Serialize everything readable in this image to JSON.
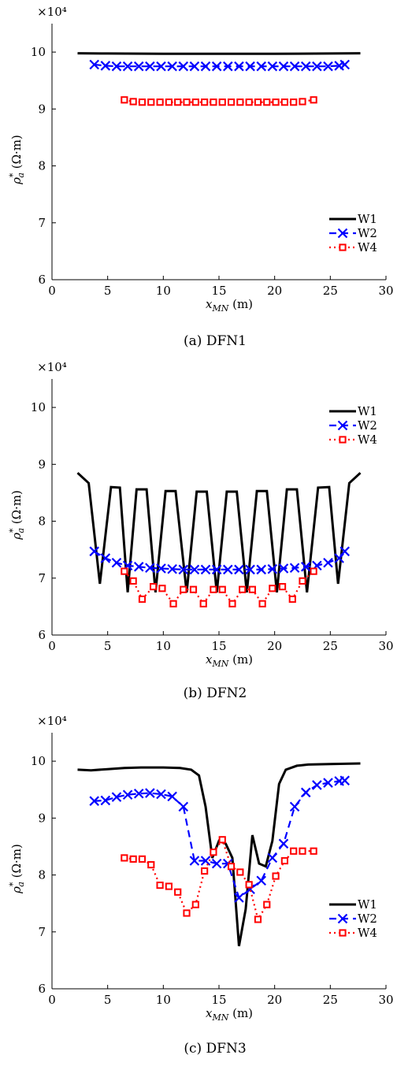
{
  "chart_data": [
    {
      "type": "line",
      "caption": "(a) DFN1",
      "multiplier": "×10⁴",
      "xlabel": "x_MN (m)",
      "ylabel": "ρ*_a (Ω·m)",
      "xlim": [
        0,
        30
      ],
      "ylim": [
        6,
        10.5
      ],
      "xticks": [
        "0",
        "5",
        "10",
        "15",
        "20",
        "25",
        "30"
      ],
      "yticks": [
        "6",
        "7",
        "8",
        "9",
        "10"
      ],
      "legend_position": "bottom-right",
      "series": [
        {
          "name": "W1",
          "color": "#000000",
          "style": "solid",
          "marker": "none",
          "x": [
            2.3,
            5,
            10,
            15,
            20,
            25,
            27.7
          ],
          "y": [
            9.98,
            9.975,
            9.97,
            9.97,
            9.97,
            9.975,
            9.98
          ]
        },
        {
          "name": "W2",
          "color": "#0000ff",
          "style": "dashed",
          "marker": "x",
          "x": [
            3.8,
            4.8,
            5.8,
            6.8,
            7.8,
            8.8,
            9.8,
            10.8,
            11.8,
            12.8,
            13.8,
            14.8,
            15.8,
            16.8,
            17.8,
            18.8,
            19.8,
            20.8,
            21.8,
            22.8,
            23.8,
            24.8,
            25.8,
            26.3
          ],
          "y": [
            9.78,
            9.76,
            9.75,
            9.75,
            9.75,
            9.75,
            9.75,
            9.75,
            9.75,
            9.75,
            9.75,
            9.75,
            9.75,
            9.75,
            9.75,
            9.75,
            9.75,
            9.75,
            9.75,
            9.75,
            9.75,
            9.75,
            9.76,
            9.78
          ]
        },
        {
          "name": "W4",
          "color": "#ff0000",
          "style": "dotted",
          "marker": "square",
          "x": [
            6.5,
            7.3,
            8.1,
            8.9,
            9.7,
            10.5,
            11.3,
            12.1,
            12.9,
            13.7,
            14.5,
            15.3,
            16.1,
            16.9,
            17.7,
            18.5,
            19.3,
            20.1,
            20.9,
            21.7,
            22.5,
            23.5
          ],
          "y": [
            9.16,
            9.13,
            9.12,
            9.12,
            9.12,
            9.12,
            9.12,
            9.12,
            9.12,
            9.12,
            9.12,
            9.12,
            9.12,
            9.12,
            9.12,
            9.12,
            9.12,
            9.12,
            9.12,
            9.12,
            9.13,
            9.16
          ]
        }
      ]
    },
    {
      "type": "line",
      "caption": "(b) DFN2",
      "multiplier": "×10⁴",
      "xlabel": "x_MN (m)",
      "ylabel": "ρ*_a (Ω·m)",
      "xlim": [
        0,
        30
      ],
      "ylim": [
        6,
        10.5
      ],
      "xticks": [
        "0",
        "5",
        "10",
        "15",
        "20",
        "25",
        "30"
      ],
      "yticks": [
        "6",
        "7",
        "8",
        "9",
        "10"
      ],
      "legend_position": "top-right",
      "series": [
        {
          "name": "W1",
          "color": "#000000",
          "style": "solid",
          "marker": "none",
          "x": [
            2.3,
            3.3,
            4.3,
            5.3,
            6.1,
            6.8,
            7.6,
            8.5,
            9.3,
            10.2,
            11.1,
            12.1,
            13,
            13.9,
            14.8,
            15.7,
            16.6,
            17.5,
            18.4,
            19.3,
            20.2,
            21.1,
            22,
            22.9,
            23.9,
            24.9,
            25.7,
            26.7,
            27.7
          ],
          "y": [
            8.85,
            8.67,
            6.9,
            8.6,
            8.59,
            6.75,
            8.56,
            8.56,
            6.75,
            8.53,
            8.53,
            6.75,
            8.52,
            8.52,
            6.75,
            8.52,
            8.52,
            6.75,
            8.53,
            8.53,
            6.75,
            8.56,
            8.56,
            6.75,
            8.59,
            8.6,
            6.9,
            8.67,
            8.85
          ]
        },
        {
          "name": "W2",
          "color": "#0000ff",
          "style": "dashed",
          "marker": "x",
          "x": [
            3.8,
            4.8,
            5.8,
            6.8,
            7.8,
            8.8,
            9.8,
            10.8,
            11.8,
            12.8,
            13.8,
            14.8,
            15.8,
            16.8,
            17.8,
            18.8,
            19.8,
            20.8,
            21.8,
            22.8,
            23.8,
            24.8,
            25.8,
            26.3
          ],
          "y": [
            7.47,
            7.35,
            7.27,
            7.22,
            7.2,
            7.18,
            7.17,
            7.16,
            7.15,
            7.15,
            7.15,
            7.15,
            7.15,
            7.15,
            7.15,
            7.15,
            7.16,
            7.17,
            7.18,
            7.2,
            7.22,
            7.27,
            7.35,
            7.47
          ]
        },
        {
          "name": "W4",
          "color": "#ff0000",
          "style": "dotted",
          "marker": "square",
          "x": [
            6.5,
            7.3,
            8.1,
            9.1,
            9.9,
            10.9,
            11.8,
            12.7,
            13.6,
            14.5,
            15.3,
            16.2,
            17.1,
            18,
            18.9,
            19.8,
            20.7,
            21.6,
            22.5,
            23.5
          ],
          "y": [
            7.12,
            6.95,
            6.63,
            6.85,
            6.82,
            6.55,
            6.8,
            6.8,
            6.55,
            6.8,
            6.8,
            6.55,
            6.8,
            6.8,
            6.55,
            6.82,
            6.85,
            6.63,
            6.95,
            7.12
          ]
        }
      ]
    },
    {
      "type": "line",
      "caption": "(c) DFN3",
      "multiplier": "×10⁴",
      "xlabel": "x_MN (m)",
      "ylabel": "ρ*_a (Ω·m)",
      "xlim": [
        0,
        30
      ],
      "ylim": [
        6,
        10.5
      ],
      "xticks": [
        "0",
        "5",
        "10",
        "15",
        "20",
        "25",
        "30"
      ],
      "yticks": [
        "6",
        "7",
        "8",
        "9",
        "10"
      ],
      "legend_position": "center-right",
      "series": [
        {
          "name": "W1",
          "color": "#000000",
          "style": "solid",
          "marker": "none",
          "x": [
            2.3,
            3.5,
            5,
            6.5,
            8,
            10,
            11.5,
            12.5,
            13.2,
            13.8,
            14.4,
            15,
            15.6,
            16.2,
            16.8,
            17.4,
            18,
            18.6,
            19.2,
            19.8,
            20.4,
            21,
            22,
            23,
            25,
            27.7
          ],
          "y": [
            9.85,
            9.84,
            9.86,
            9.88,
            9.89,
            9.89,
            9.88,
            9.85,
            9.75,
            9.2,
            8.3,
            8.6,
            8.55,
            8.3,
            6.75,
            7.4,
            8.7,
            8.2,
            8.15,
            8.6,
            9.6,
            9.85,
            9.92,
            9.94,
            9.95,
            9.96
          ]
        },
        {
          "name": "W2",
          "color": "#0000ff",
          "style": "dashed",
          "marker": "x",
          "x": [
            3.8,
            4.8,
            5.8,
            6.8,
            7.8,
            8.8,
            9.8,
            10.8,
            11.8,
            12.8,
            13.8,
            14.8,
            15.8,
            16.8,
            17.8,
            18.8,
            19.8,
            20.8,
            21.8,
            22.8,
            23.8,
            24.8,
            25.8,
            26.3
          ],
          "y": [
            9.3,
            9.31,
            9.37,
            9.41,
            9.43,
            9.44,
            9.42,
            9.38,
            9.2,
            8.25,
            8.25,
            8.2,
            8.2,
            7.6,
            7.75,
            7.9,
            8.3,
            8.55,
            9.2,
            9.45,
            9.58,
            9.62,
            9.65,
            9.66
          ]
        },
        {
          "name": "W4",
          "color": "#ff0000",
          "style": "dotted",
          "marker": "square",
          "x": [
            6.5,
            7.3,
            8.1,
            8.9,
            9.7,
            10.5,
            11.3,
            12.1,
            12.9,
            13.7,
            14.5,
            15.3,
            16.1,
            16.9,
            17.7,
            18.5,
            19.3,
            20.1,
            20.9,
            21.7,
            22.5,
            23.5
          ],
          "y": [
            8.3,
            8.28,
            8.28,
            8.18,
            7.82,
            7.8,
            7.7,
            7.33,
            7.48,
            8.07,
            8.4,
            8.62,
            8.15,
            8.05,
            7.83,
            7.22,
            7.48,
            7.98,
            8.25,
            8.42,
            8.42,
            8.42
          ]
        }
      ]
    }
  ]
}
